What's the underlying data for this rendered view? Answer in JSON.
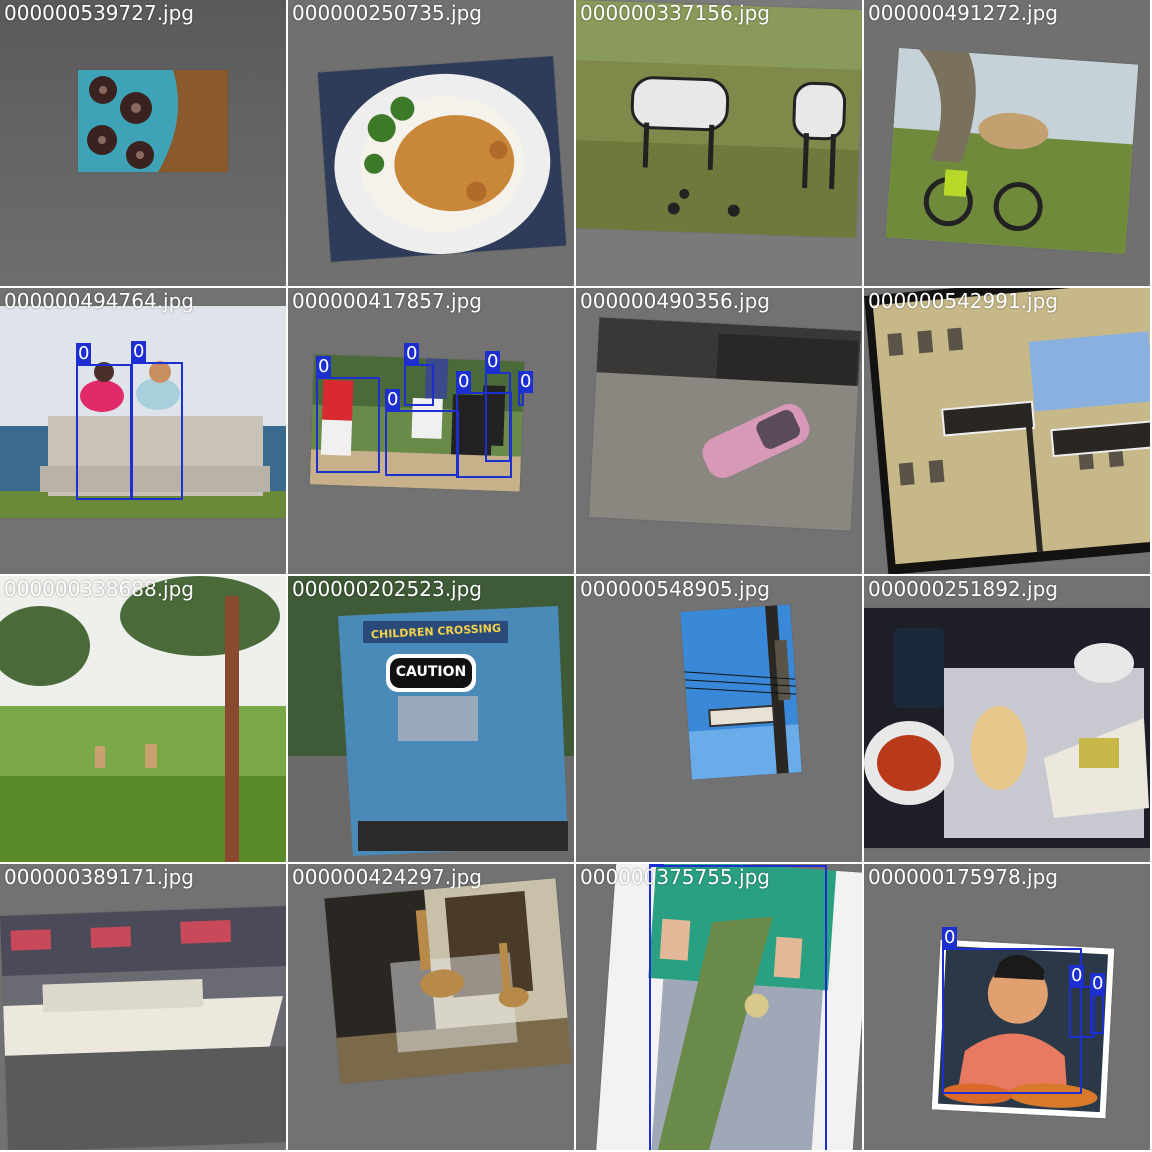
{
  "title": "",
  "images": [
    {
      "filename": "000000539727.jpg",
      "detections": []
    },
    {
      "filename": "000000250735.jpg",
      "detections": []
    },
    {
      "filename": "000000337156.jpg",
      "detections": []
    },
    {
      "filename": "000000491272.jpg",
      "detections": []
    },
    {
      "filename": "000000494764.jpg",
      "detections": [
        {
          "class_label": "0"
        },
        {
          "class_label": "0"
        }
      ]
    },
    {
      "filename": "000000417857.jpg",
      "detections": [
        {
          "class_label": "0"
        },
        {
          "class_label": "0"
        },
        {
          "class_label": "0"
        },
        {
          "class_label": "0"
        },
        {
          "class_label": "0"
        },
        {
          "class_label": "0"
        }
      ]
    },
    {
      "filename": "000000490356.jpg",
      "detections": []
    },
    {
      "filename": "000000542991.jpg",
      "detections": []
    },
    {
      "filename": "000000338688.jpg",
      "detections": []
    },
    {
      "filename": "000000202523.jpg",
      "detections": []
    },
    {
      "filename": "000000548905.jpg",
      "detections": []
    },
    {
      "filename": "000000251892.jpg",
      "detections": []
    },
    {
      "filename": "000000389171.jpg",
      "detections": []
    },
    {
      "filename": "000000424297.jpg",
      "detections": []
    },
    {
      "filename": "000000375755.jpg",
      "detections": [
        {
          "class_label": "0"
        }
      ]
    },
    {
      "filename": "000000175978.jpg",
      "detections": [
        {
          "class_label": "0"
        },
        {
          "class_label": "0"
        },
        {
          "class_label": "0"
        }
      ]
    }
  ],
  "scene_text": {
    "truck_sign": "CHILDREN CROSSING",
    "truck_caution": "CAUTION"
  },
  "colors": {
    "padding_gray": "#727272",
    "box_blue": "#1e2fd2",
    "label_text": "#ffffff"
  }
}
